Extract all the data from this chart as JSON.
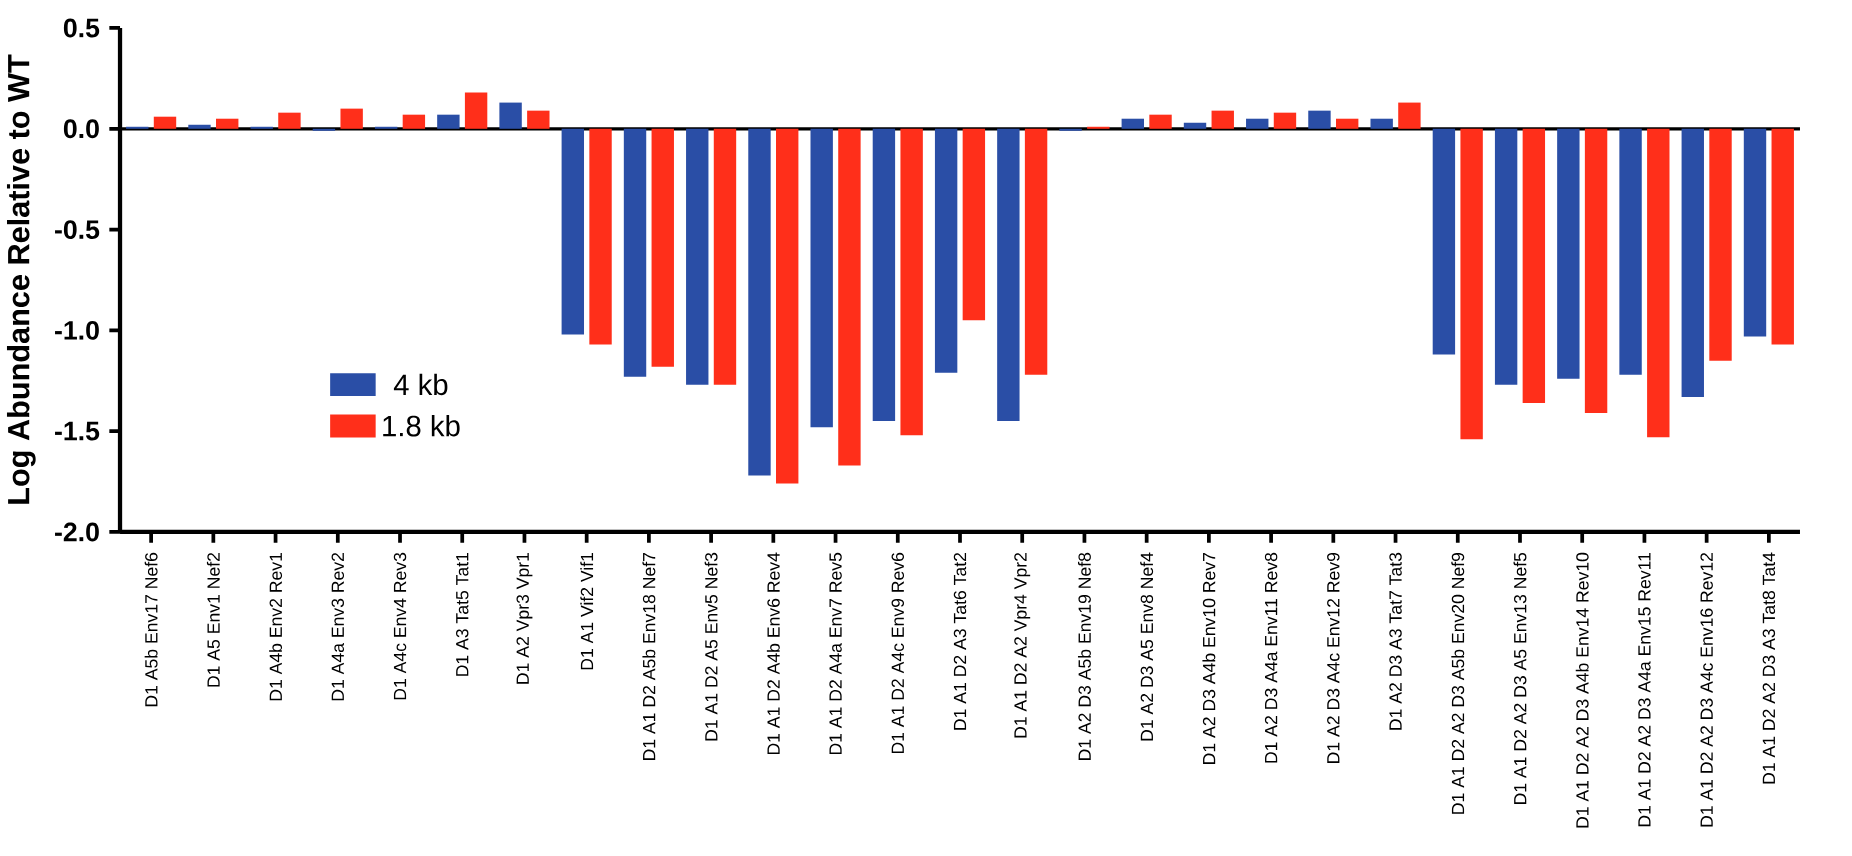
{
  "chart_data": {
    "type": "bar",
    "ylabel": "Log Abundance Relative to WT",
    "categories": [
      "D1 A5b Env17 Nef6",
      "D1 A5 Env1 Nef2",
      "D1 A4b Env2 Rev1",
      "D1 A4a Env3 Rev2",
      "D1 A4c Env4 Rev3",
      "D1 A3 Tat5 Tat1",
      "D1 A2 Vpr3 Vpr1",
      "D1 A1 Vif2 Vif1",
      "D1 A1 D2 A5b Env18 Nef7",
      "D1 A1 D2 A5 Env5 Nef3",
      "D1 A1 D2 A4b Env6 Rev4",
      "D1 A1 D2 A4a Env7 Rev5",
      "D1 A1 D2 A4c Env9 Rev6",
      "D1 A1 D2 A3 Tat6 Tat2",
      "D1 A1 D2 A2 Vpr4 Vpr2",
      "D1 A2 D3 A5b Env19 Nef8",
      "D1 A2 D3 A5 Env8 Nef4",
      "D1 A2 D3 A4b Env10 Rev7",
      "D1 A2 D3 A4a Env11 Rev8",
      "D1 A2 D3 A4c Env12 Rev9",
      "D1 A2 D3 A3 Tat7 Tat3",
      "D1 A1 D2 A2 D3 A5b Env20 Nef9",
      "D1 A1 D2 A2 D3 A5 Env13 Nef5",
      "D1 A1 D2 A2 D3 A4b Env14 Rev10",
      "D1 A1 D2 A2 D3 A4a Env15 Rev11",
      "D1 A1 D2 A2 D3 A4c Env16 Rev12",
      "D1 A1 D2 A2 D3 A3 Tat8 Tat4"
    ],
    "series": [
      {
        "name": "4 kb",
        "color": "#2a4ea6",
        "values": [
          0.01,
          0.02,
          0.01,
          -0.01,
          0.01,
          0.07,
          0.13,
          -1.02,
          -1.23,
          -1.27,
          -1.72,
          -1.48,
          -1.45,
          -1.21,
          -1.45,
          -0.01,
          0.05,
          0.03,
          0.05,
          0.09,
          0.05,
          -1.12,
          -1.27,
          -1.24,
          -1.22,
          -1.33,
          -1.03
        ]
      },
      {
        "name": "1.8 kb",
        "color": "#ff2f1a",
        "values": [
          0.06,
          0.05,
          0.08,
          0.1,
          0.07,
          0.18,
          0.09,
          -1.07,
          -1.18,
          -1.27,
          -1.76,
          -1.67,
          -1.52,
          -0.95,
          -1.22,
          0.01,
          0.07,
          0.09,
          0.08,
          0.05,
          0.13,
          -1.54,
          -1.36,
          -1.41,
          -1.53,
          -1.15,
          -1.07
        ]
      }
    ],
    "ylim": [
      -2.0,
      0.5
    ],
    "yticks": [
      {
        "value": -2.0,
        "label": "-2.0"
      },
      {
        "value": -1.5,
        "label": "-1.5"
      },
      {
        "value": -1.0,
        "label": "-1.0"
      },
      {
        "value": -0.5,
        "label": "-0.5"
      },
      {
        "value": 0.0,
        "label": "0.0"
      },
      {
        "value": 0.5,
        "label": "0.5"
      }
    ],
    "ref_lines": [
      {
        "axis": "y",
        "value": 0,
        "color": "#000000"
      }
    ],
    "legend": "bottom left",
    "grid": false
  }
}
